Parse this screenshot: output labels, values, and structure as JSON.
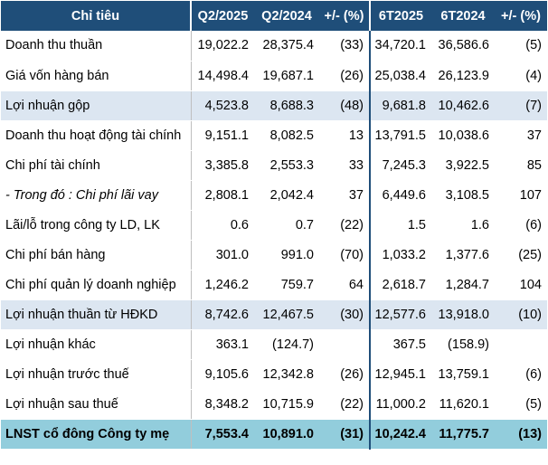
{
  "table": {
    "headers": [
      "Chỉ tiêu",
      "Q2/2025",
      "Q2/2024",
      "+/- (%)",
      "6T2025",
      "6T2024",
      "+/- (%)"
    ],
    "rows": [
      {
        "label": "Doanh thu thuần",
        "cells": [
          "19,022.2",
          "28,375.4",
          "(33)",
          "34,720.1",
          "36,586.6",
          "(5)"
        ]
      },
      {
        "label": "Giá vốn hàng bán",
        "cells": [
          "14,498.4",
          "19,687.1",
          "(26)",
          "25,038.4",
          "26,123.9",
          "(4)"
        ]
      },
      {
        "label": "Lợi nhuận gộp",
        "cells": [
          "4,523.8",
          "8,688.3",
          "(48)",
          "9,681.8",
          "10,462.6",
          "(7)"
        ]
      },
      {
        "label": "Doanh thu hoạt động tài chính",
        "cells": [
          "9,151.1",
          "8,082.5",
          "13",
          "13,791.5",
          "10,038.6",
          "37"
        ]
      },
      {
        "label": "Chi phí tài chính",
        "cells": [
          "3,385.8",
          "2,553.3",
          "33",
          "7,245.3",
          "3,922.5",
          "85"
        ]
      },
      {
        "label": "- Trong đó : Chi phí lãi vay",
        "cells": [
          "2,808.1",
          "2,042.4",
          "37",
          "6,449.6",
          "3,108.5",
          "107"
        ]
      },
      {
        "label": "Lãi/lỗ trong công ty LD, LK",
        "cells": [
          "0.6",
          "0.7",
          "(22)",
          "1.5",
          "1.6",
          "(6)"
        ]
      },
      {
        "label": "Chi phí bán hàng",
        "cells": [
          "301.0",
          "991.0",
          "(70)",
          "1,033.2",
          "1,377.6",
          "(25)"
        ]
      },
      {
        "label": "Chi phí quản lý doanh nghiệp",
        "cells": [
          "1,246.2",
          "759.7",
          "64",
          "2,618.7",
          "1,284.7",
          "104"
        ]
      },
      {
        "label": "Lợi nhuận thuần từ HĐKD",
        "cells": [
          "8,742.6",
          "12,467.5",
          "(30)",
          "12,577.6",
          "13,918.0",
          "(10)"
        ]
      },
      {
        "label": "Lợi nhuận khác",
        "cells": [
          "363.1",
          "(124.7)",
          "",
          "367.5",
          "(158.9)",
          ""
        ]
      },
      {
        "label": "Lợi nhuận trước thuế",
        "cells": [
          "9,105.6",
          "12,342.8",
          "(26)",
          "12,945.1",
          "13,759.1",
          "(6)"
        ]
      },
      {
        "label": "Lợi nhuận sau thuế",
        "cells": [
          "8,348.2",
          "10,715.9",
          "(22)",
          "11,000.2",
          "11,620.1",
          "(5)"
        ]
      },
      {
        "label": "LNST cổ đông Công ty mẹ",
        "cells": [
          "7,553.4",
          "10,891.0",
          "(31)",
          "10,242.4",
          "11,775.7",
          "(13)"
        ]
      }
    ]
  },
  "colors": {
    "header_bg": "#1f4e79",
    "highlight_row_bg": "#dce6f1",
    "total_row_bg": "#92cddc",
    "negative_text": "#ff0000"
  }
}
